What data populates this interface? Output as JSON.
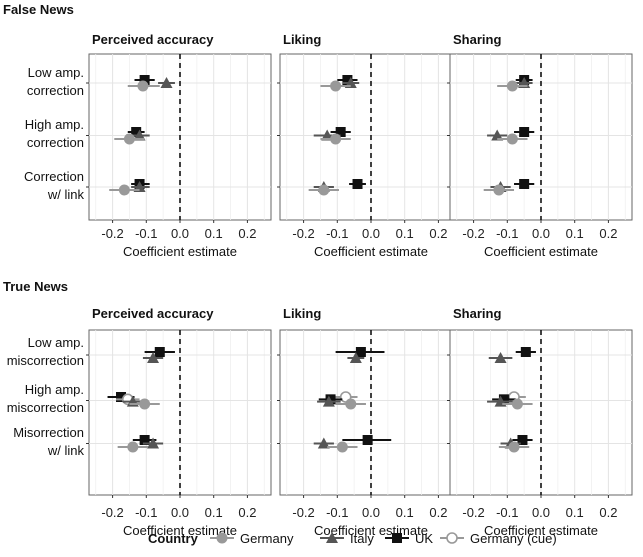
{
  "chart_data": {
    "type": "coefficient-dot-plot",
    "xlabel": "Coefficient estimate",
    "xlim": [
      -0.27,
      0.27
    ],
    "xticks": [
      -0.2,
      -0.1,
      0.0,
      0.1,
      0.2
    ],
    "xtick_labels": [
      "-0.2",
      "-0.1",
      "0.0",
      "0.1",
      "0.2"
    ],
    "reference_line": 0.0,
    "legend": {
      "title": "Country",
      "entries": [
        {
          "name": "Germany",
          "marker": "circle",
          "color": "#999999"
        },
        {
          "name": "Italy",
          "marker": "triangle",
          "color": "#555555"
        },
        {
          "name": "UK",
          "marker": "square",
          "color": "#111111"
        },
        {
          "name": "Germany (cue)",
          "marker": "open-circle",
          "color": "#999999"
        }
      ]
    },
    "sections": [
      {
        "title": "False News",
        "rows": [
          {
            "label": [
              "Low amp.",
              "correction"
            ]
          },
          {
            "label": [
              "High amp.",
              "correction"
            ]
          },
          {
            "label": [
              "Correction",
              "w/ link"
            ]
          }
        ],
        "panels": [
          {
            "title": "Perceived accuracy",
            "rows": [
              [
                {
                  "series": "UK",
                  "est": -0.105,
                  "lo": -0.135,
                  "hi": -0.075
                },
                {
                  "series": "Italy",
                  "est": -0.04,
                  "lo": -0.065,
                  "hi": -0.015
                },
                {
                  "series": "Germany",
                  "est": -0.11,
                  "lo": -0.155,
                  "hi": -0.06
                }
              ],
              [
                {
                  "series": "UK",
                  "est": -0.13,
                  "lo": -0.155,
                  "hi": -0.105
                },
                {
                  "series": "Italy",
                  "est": -0.12,
                  "lo": -0.145,
                  "hi": -0.09
                },
                {
                  "series": "Germany",
                  "est": -0.15,
                  "lo": -0.195,
                  "hi": -0.105
                }
              ],
              [
                {
                  "series": "UK",
                  "est": -0.12,
                  "lo": -0.145,
                  "hi": -0.09
                },
                {
                  "series": "Italy",
                  "est": -0.12,
                  "lo": -0.145,
                  "hi": -0.09
                },
                {
                  "series": "Germany",
                  "est": -0.165,
                  "lo": -0.21,
                  "hi": -0.12
                }
              ]
            ]
          },
          {
            "title": "Liking",
            "rows": [
              [
                {
                  "series": "UK",
                  "est": -0.07,
                  "lo": -0.1,
                  "hi": -0.04
                },
                {
                  "series": "Italy",
                  "est": -0.06,
                  "lo": -0.085,
                  "hi": -0.035
                },
                {
                  "series": "Germany",
                  "est": -0.105,
                  "lo": -0.15,
                  "hi": -0.06
                }
              ],
              [
                {
                  "series": "UK",
                  "est": -0.09,
                  "lo": -0.12,
                  "hi": -0.06
                },
                {
                  "series": "Italy",
                  "est": -0.13,
                  "lo": -0.17,
                  "hi": -0.09
                },
                {
                  "series": "Germany",
                  "est": -0.105,
                  "lo": -0.15,
                  "hi": -0.06
                }
              ],
              [
                {
                  "series": "UK",
                  "est": -0.04,
                  "lo": -0.065,
                  "hi": -0.015
                },
                {
                  "series": "Italy",
                  "est": -0.14,
                  "lo": -0.17,
                  "hi": -0.11
                },
                {
                  "series": "Germany",
                  "est": -0.14,
                  "lo": -0.185,
                  "hi": -0.095
                }
              ]
            ]
          },
          {
            "title": "Sharing",
            "rows": [
              [
                {
                  "series": "UK",
                  "est": -0.05,
                  "lo": -0.075,
                  "hi": -0.025
                },
                {
                  "series": "Italy",
                  "est": -0.05,
                  "lo": -0.075,
                  "hi": -0.025
                },
                {
                  "series": "Germany",
                  "est": -0.085,
                  "lo": -0.13,
                  "hi": -0.04
                }
              ],
              [
                {
                  "series": "UK",
                  "est": -0.05,
                  "lo": -0.08,
                  "hi": -0.02
                },
                {
                  "series": "Italy",
                  "est": -0.13,
                  "lo": -0.16,
                  "hi": -0.1
                },
                {
                  "series": "Germany",
                  "est": -0.085,
                  "lo": -0.13,
                  "hi": -0.04
                }
              ],
              [
                {
                  "series": "UK",
                  "est": -0.05,
                  "lo": -0.08,
                  "hi": -0.02
                },
                {
                  "series": "Italy",
                  "est": -0.12,
                  "lo": -0.15,
                  "hi": -0.09
                },
                {
                  "series": "Germany",
                  "est": -0.125,
                  "lo": -0.17,
                  "hi": -0.08
                }
              ]
            ]
          }
        ]
      },
      {
        "title": "True News",
        "rows": [
          {
            "label": [
              "Low amp.",
              "miscorrection"
            ]
          },
          {
            "label": [
              "High amp.",
              "miscorrection"
            ]
          },
          {
            "label": [
              "Misorrection",
              "w/ link"
            ]
          }
        ],
        "panels": [
          {
            "title": "Perceived accuracy",
            "rows": [
              [
                {
                  "series": "UK",
                  "est": -0.06,
                  "lo": -0.105,
                  "hi": -0.015
                },
                {
                  "series": "Italy",
                  "est": -0.08,
                  "lo": -0.11,
                  "hi": -0.05
                }
              ],
              [
                {
                  "series": "UK",
                  "est": -0.175,
                  "lo": -0.215,
                  "hi": -0.135
                },
                {
                  "series": "Germany (cue)",
                  "est": -0.155,
                  "lo": -0.19,
                  "hi": -0.12
                },
                {
                  "series": "Italy",
                  "est": -0.14,
                  "lo": -0.17,
                  "hi": -0.11
                },
                {
                  "series": "Germany",
                  "est": -0.105,
                  "lo": -0.15,
                  "hi": -0.06
                }
              ],
              [
                {
                  "series": "UK",
                  "est": -0.105,
                  "lo": -0.14,
                  "hi": -0.07
                },
                {
                  "series": "Italy",
                  "est": -0.08,
                  "lo": -0.11,
                  "hi": -0.05
                },
                {
                  "series": "Germany",
                  "est": -0.14,
                  "lo": -0.185,
                  "hi": -0.095
                }
              ]
            ]
          },
          {
            "title": "Liking",
            "rows": [
              [
                {
                  "series": "UK",
                  "est": -0.03,
                  "lo": -0.105,
                  "hi": 0.04
                },
                {
                  "series": "Italy",
                  "est": -0.045,
                  "lo": -0.07,
                  "hi": -0.02
                }
              ],
              [
                {
                  "series": "Germany (cue)",
                  "est": -0.075,
                  "lo": -0.11,
                  "hi": -0.04
                },
                {
                  "series": "UK",
                  "est": -0.12,
                  "lo": -0.155,
                  "hi": -0.085
                },
                {
                  "series": "Italy",
                  "est": -0.125,
                  "lo": -0.16,
                  "hi": -0.09
                },
                {
                  "series": "Germany",
                  "est": -0.06,
                  "lo": -0.105,
                  "hi": -0.015
                }
              ],
              [
                {
                  "series": "UK",
                  "est": -0.01,
                  "lo": -0.085,
                  "hi": 0.06
                },
                {
                  "series": "Italy",
                  "est": -0.14,
                  "lo": -0.17,
                  "hi": -0.11
                },
                {
                  "series": "Germany",
                  "est": -0.085,
                  "lo": -0.13,
                  "hi": -0.04
                }
              ]
            ]
          },
          {
            "title": "Sharing",
            "rows": [
              [
                {
                  "series": "UK",
                  "est": -0.045,
                  "lo": -0.075,
                  "hi": -0.015
                },
                {
                  "series": "Italy",
                  "est": -0.12,
                  "lo": -0.155,
                  "hi": -0.085
                }
              ],
              [
                {
                  "series": "Germany (cue)",
                  "est": -0.08,
                  "lo": -0.115,
                  "hi": -0.045
                },
                {
                  "series": "UK",
                  "est": -0.11,
                  "lo": -0.145,
                  "hi": -0.075
                },
                {
                  "series": "Italy",
                  "est": -0.12,
                  "lo": -0.16,
                  "hi": -0.08
                },
                {
                  "series": "Germany",
                  "est": -0.07,
                  "lo": -0.115,
                  "hi": -0.025
                }
              ],
              [
                {
                  "series": "UK",
                  "est": -0.055,
                  "lo": -0.085,
                  "hi": -0.025
                },
                {
                  "series": "Italy",
                  "est": -0.09,
                  "lo": -0.12,
                  "hi": -0.06
                },
                {
                  "series": "Germany",
                  "est": -0.08,
                  "lo": -0.125,
                  "hi": -0.035
                }
              ]
            ]
          }
        ]
      }
    ]
  }
}
